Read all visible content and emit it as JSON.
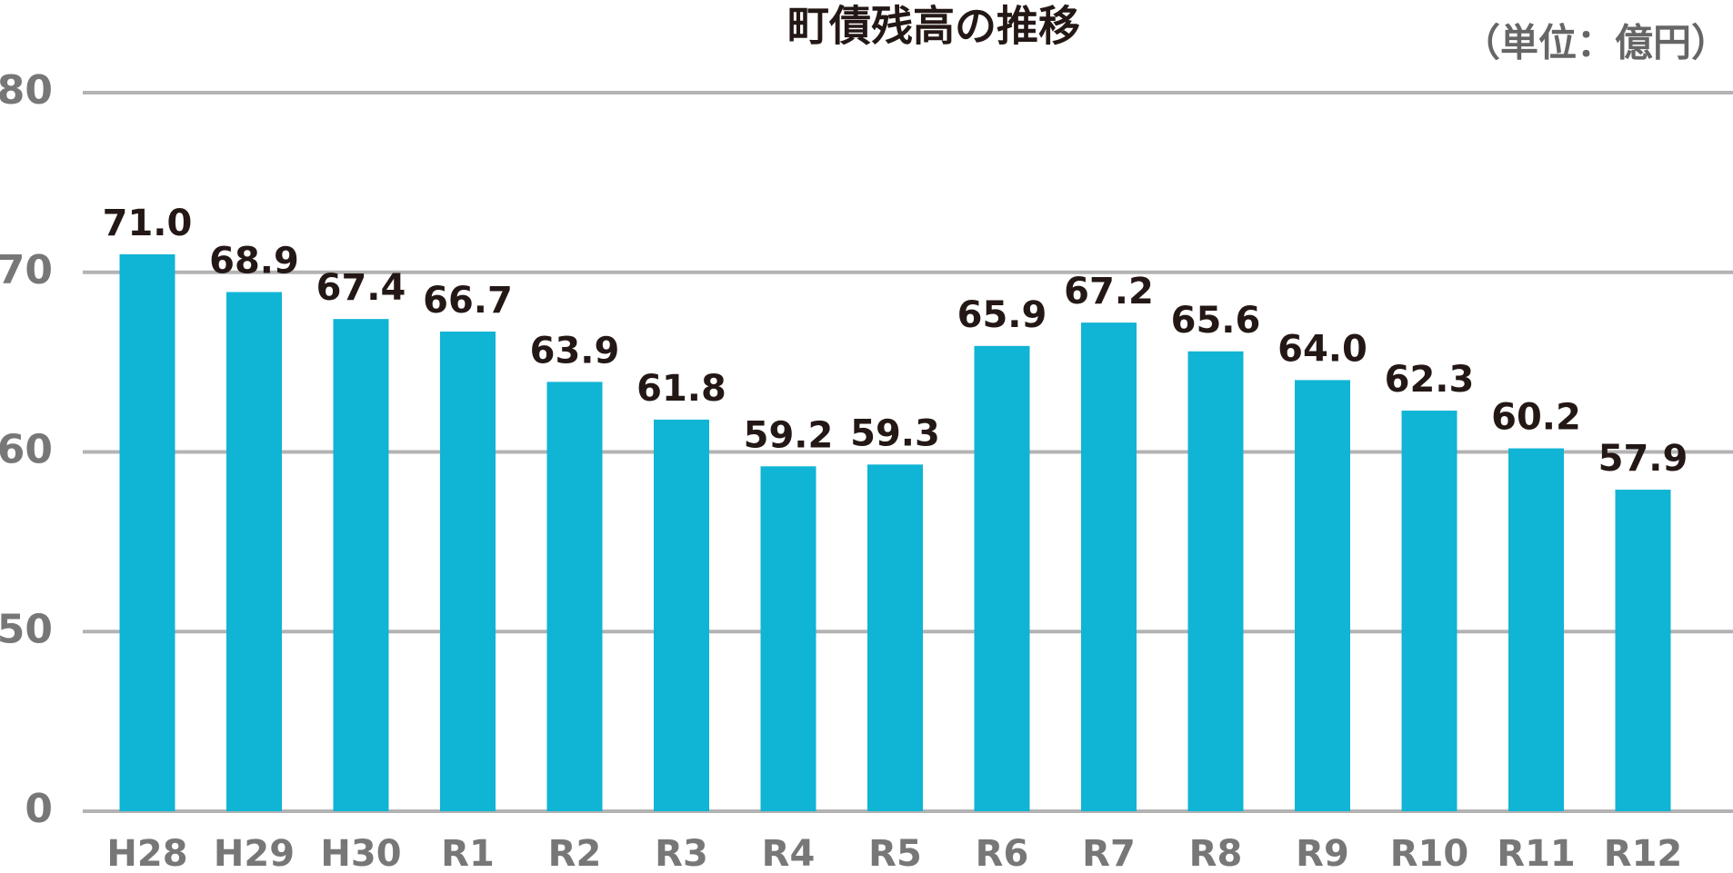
{
  "chart_data": {
    "type": "bar",
    "title": "町債残高の推移",
    "unit_label": "（単位：億円）",
    "categories": [
      "H28",
      "H29",
      "H30",
      "R1",
      "R2",
      "R3",
      "R4",
      "R5",
      "R6",
      "R7",
      "R8",
      "R9",
      "R10",
      "R11",
      "R12"
    ],
    "values": [
      71.0,
      68.9,
      67.4,
      66.7,
      63.9,
      61.8,
      59.2,
      59.3,
      65.9,
      67.2,
      65.6,
      64.0,
      62.3,
      60.2,
      57.9
    ],
    "value_labels": [
      "71.0",
      "68.9",
      "67.4",
      "66.7",
      "63.9",
      "61.8",
      "59.2",
      "59.3",
      "65.9",
      "67.2",
      "65.6",
      "64.0",
      "62.3",
      "60.2",
      "57.9"
    ],
    "color": "#10b4d4",
    "ylim": [
      0,
      80
    ],
    "yticks": [
      0,
      50,
      60,
      70,
      80
    ],
    "axis_break": [
      0,
      50
    ],
    "grid": true
  }
}
